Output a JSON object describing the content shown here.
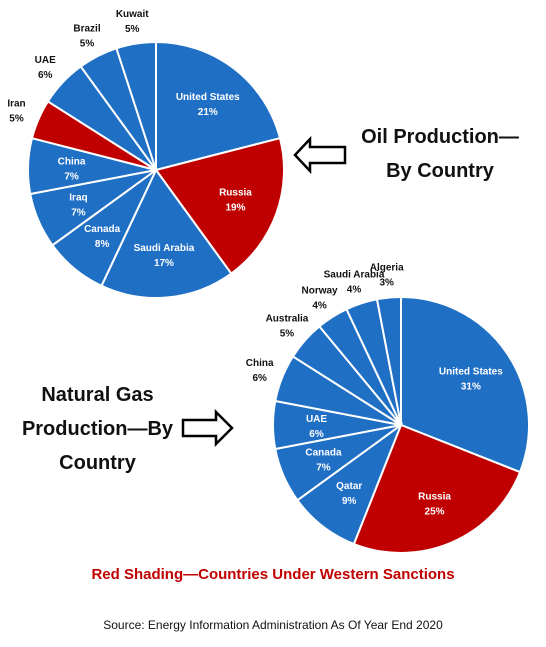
{
  "chart_data": [
    {
      "type": "pie",
      "title": "Oil Production—By Country",
      "categories": [
        "United States",
        "Russia",
        "Saudi Arabia",
        "Canada",
        "Iraq",
        "China",
        "Iran",
        "UAE",
        "Brazil",
        "Kuwait"
      ],
      "values": [
        21,
        19,
        17,
        8,
        7,
        7,
        5,
        6,
        5,
        5
      ],
      "value_labels": [
        "21%",
        "19%",
        "17%",
        "8%",
        "7%",
        "7%",
        "5%",
        "6%",
        "5%",
        "5%"
      ],
      "colors": [
        "#1f6fc5",
        "#c00000",
        "#1f6fc5",
        "#1f6fc5",
        "#1f6fc5",
        "#1f6fc5",
        "#c00000",
        "#1f6fc5",
        "#1f6fc5",
        "#1f6fc5"
      ]
    },
    {
      "type": "pie",
      "title": "Natural Gas Production—By Country",
      "categories": [
        "United States",
        "Russia",
        "Qatar",
        "Canada",
        "UAE",
        "China",
        "Australia",
        "Norway",
        "Saudi Arabia",
        "Algeria"
      ],
      "values": [
        31,
        25,
        9,
        7,
        6,
        6,
        5,
        4,
        4,
        3
      ],
      "value_labels": [
        "31%",
        "25%",
        "9%",
        "7%",
        "6%",
        "6%",
        "5%",
        "4%",
        "4%",
        "3%"
      ],
      "colors": [
        "#1f6fc5",
        "#c00000",
        "#1f6fc5",
        "#1f6fc5",
        "#1f6fc5",
        "#1f6fc5",
        "#1f6fc5",
        "#1f6fc5",
        "#1f6fc5",
        "#1f6fc5"
      ]
    }
  ],
  "caption": "Red Shading—Countries Under Western Sanctions",
  "source": "Source: Energy Information Administration As Of Year End 2020"
}
